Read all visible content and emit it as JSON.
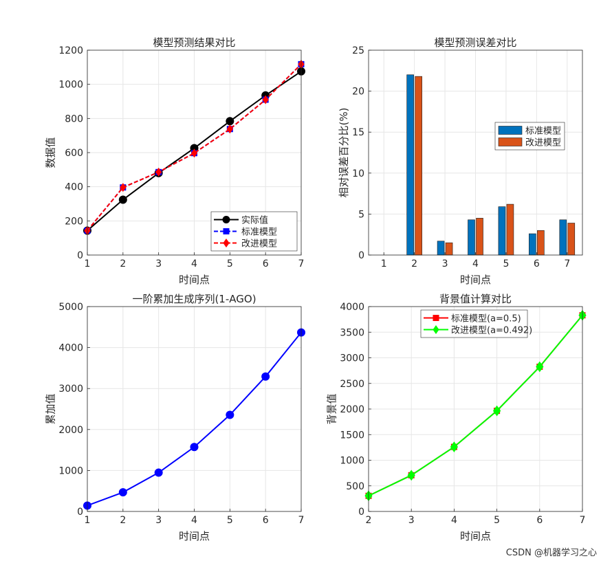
{
  "watermark": "CSDN @机器学习之心",
  "chart_data": [
    {
      "type": "line",
      "title": "模型预测结果对比",
      "xlabel": "时间点",
      "ylabel": "数据值",
      "x": [
        1,
        2,
        3,
        4,
        5,
        6,
        7
      ],
      "xlim": [
        1,
        7
      ],
      "ylim": [
        0,
        1200
      ],
      "xticks": [
        1,
        2,
        3,
        4,
        5,
        6,
        7
      ],
      "yticks": [
        0,
        200,
        400,
        600,
        800,
        1000,
        1200
      ],
      "grid": true,
      "legend_position": "bottom-right",
      "series": [
        {
          "name": "实际值",
          "color": "#000000",
          "style": "solid-circle",
          "values": [
            143,
            324,
            480,
            626,
            784,
            935,
            1076
          ]
        },
        {
          "name": "标准模型",
          "color": "#0000ff",
          "style": "dashed-square",
          "values": [
            143,
            396,
            486,
            597,
            738,
            910,
            1118
          ]
        },
        {
          "name": "改进模型",
          "color": "#ff0000",
          "style": "dashed-diamond",
          "values": [
            143,
            396,
            486,
            597,
            738,
            910,
            1118
          ]
        }
      ]
    },
    {
      "type": "bar",
      "title": "模型预测误差对比",
      "xlabel": "时间点",
      "ylabel": "相对误差百分比(%)",
      "categories": [
        1,
        2,
        3,
        4,
        5,
        6,
        7
      ],
      "ylim": [
        0,
        25
      ],
      "yticks": [
        0,
        5,
        10,
        15,
        20,
        25
      ],
      "grid": true,
      "legend_position": "right",
      "series": [
        {
          "name": "标准模型",
          "color": "#0072bd",
          "values": [
            0,
            22.0,
            1.7,
            4.3,
            5.9,
            2.6,
            4.3
          ]
        },
        {
          "name": "改进模型",
          "color": "#d95319",
          "values": [
            0,
            21.8,
            1.5,
            4.5,
            6.2,
            3.0,
            3.9
          ]
        }
      ]
    },
    {
      "type": "line",
      "title": "一阶累加生成序列(1-AGO)",
      "xlabel": "时间点",
      "ylabel": "累加值",
      "x": [
        1,
        2,
        3,
        4,
        5,
        6,
        7
      ],
      "xlim": [
        1,
        7
      ],
      "ylim": [
        0,
        5000
      ],
      "xticks": [
        1,
        2,
        3,
        4,
        5,
        6,
        7
      ],
      "yticks": [
        0,
        1000,
        2000,
        3000,
        4000,
        5000
      ],
      "grid": true,
      "series": [
        {
          "color": "#0000ff",
          "style": "solid-circle",
          "values": [
            143,
            467,
            947,
            1573,
            2357,
            3292,
            4368
          ]
        }
      ]
    },
    {
      "type": "line",
      "title": "背景值计算对比",
      "xlabel": "时间点",
      "ylabel": "背景值",
      "x": [
        2,
        3,
        4,
        5,
        6,
        7
      ],
      "xlim": [
        2,
        7
      ],
      "ylim": [
        0,
        4000
      ],
      "xticks": [
        2,
        3,
        4,
        5,
        6,
        7
      ],
      "yticks": [
        0,
        500,
        1000,
        1500,
        2000,
        2500,
        3000,
        3500,
        4000
      ],
      "grid": true,
      "legend_position": "top",
      "series": [
        {
          "name": "标准模型(a=0.5)",
          "color": "#ff0000",
          "style": "solid-square",
          "values": [
            305,
            707,
            1260,
            1965,
            2825,
            3830
          ]
        },
        {
          "name": "改进模型(a=0.492)",
          "color": "#00ff00",
          "style": "solid-diamond",
          "values": [
            305,
            707,
            1260,
            1965,
            2825,
            3830
          ]
        }
      ]
    }
  ]
}
